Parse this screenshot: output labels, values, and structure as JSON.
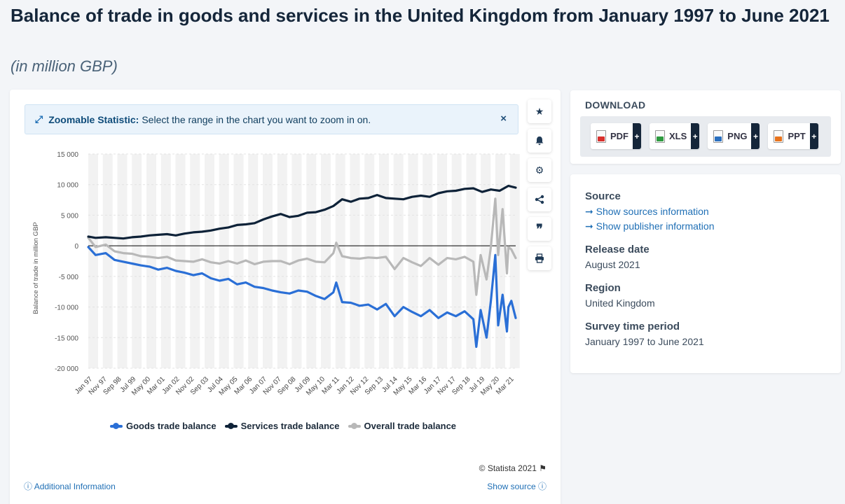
{
  "header": {
    "title": "Balance of trade in goods and services in the United Kingdom from January 1997 to June 2021",
    "subtitle": "(in million GBP)"
  },
  "zoom_banner": {
    "label": "Zoomable Statistic:",
    "text": "Select the range in the chart you want to zoom in on.",
    "close": "×"
  },
  "toolbar": {
    "icons": [
      "star-icon",
      "bell-icon",
      "gear-icon",
      "share-icon",
      "quote-icon",
      "print-icon"
    ]
  },
  "footer": {
    "copyright": "© Statista 2021",
    "additional_info": "Additional Information",
    "show_source": "Show source"
  },
  "download": {
    "heading": "DOWNLOAD",
    "buttons": [
      {
        "label": "PDF",
        "color": "#d9302c"
      },
      {
        "label": "XLS",
        "color": "#2e9b3f"
      },
      {
        "label": "PNG",
        "color": "#2a6fbf"
      },
      {
        "label": "PPT",
        "color": "#e8731c"
      }
    ],
    "plus": "+"
  },
  "info": {
    "source_heading": "Source",
    "source_link1": "Show sources information",
    "source_link2": "Show publisher information",
    "release_heading": "Release date",
    "release_value": "August 2021",
    "region_heading": "Region",
    "region_value": "United Kingdom",
    "period_heading": "Survey time period",
    "period_value": "January 1997 to June 2021"
  },
  "chart_data": {
    "type": "line",
    "ylabel": "Balance of trade in million GBP",
    "xlabel": "",
    "ylim": [
      -20000,
      15000
    ],
    "yticks": [
      15000,
      10000,
      5000,
      0,
      -5000,
      -10000,
      -15000,
      -20000
    ],
    "ytick_labels": [
      "15 000",
      "10 000",
      "5 000",
      "0",
      "-5 000",
      "-10 000",
      "-15 000",
      "-20 000"
    ],
    "x_start": "1997-01",
    "x_end": "2021-06",
    "xtick_labels": [
      "Jan 97",
      "Nov 97",
      "Sep 98",
      "Jul 99",
      "May 00",
      "Mar 01",
      "Jan 02",
      "Nov 02",
      "Sep 03",
      "Jul 04",
      "May 05",
      "Mar 06",
      "Jan 07",
      "Nov 07",
      "Sep 08",
      "Jul 09",
      "May 10",
      "Mar 11",
      "Jan 12",
      "Nov 12",
      "Sep 13",
      "Jul 14",
      "May 15",
      "Mar 16",
      "Jan 17",
      "Nov 17",
      "Sep 18",
      "Jul 19",
      "May 20",
      "Mar 21"
    ],
    "legend_position": "bottom",
    "grid": true,
    "series": [
      {
        "name": "Goods trade balance",
        "color": "#2a6fd6",
        "x": [
          "1997-01",
          "1997-06",
          "1998-01",
          "1998-07",
          "1999-01",
          "1999-07",
          "2000-01",
          "2000-07",
          "2001-01",
          "2001-07",
          "2002-01",
          "2002-07",
          "2003-01",
          "2003-07",
          "2004-01",
          "2004-07",
          "2005-01",
          "2005-07",
          "2006-01",
          "2006-07",
          "2007-01",
          "2007-07",
          "2008-01",
          "2008-07",
          "2009-01",
          "2009-07",
          "2010-01",
          "2010-07",
          "2011-01",
          "2011-03",
          "2011-07",
          "2012-01",
          "2012-07",
          "2013-01",
          "2013-07",
          "2014-01",
          "2014-07",
          "2015-01",
          "2015-07",
          "2016-01",
          "2016-07",
          "2017-01",
          "2017-07",
          "2018-01",
          "2018-07",
          "2019-01",
          "2019-03",
          "2019-06",
          "2019-10",
          "2020-01",
          "2020-04",
          "2020-06",
          "2020-09",
          "2020-12",
          "2021-01",
          "2021-03",
          "2021-06"
        ],
        "values": [
          -200,
          -1500,
          -1200,
          -2300,
          -2600,
          -2900,
          -3200,
          -3400,
          -3900,
          -3600,
          -4100,
          -4400,
          -4800,
          -4500,
          -5300,
          -5700,
          -5400,
          -6300,
          -6000,
          -6700,
          -6900,
          -7300,
          -7600,
          -7800,
          -7300,
          -7500,
          -8200,
          -8700,
          -7600,
          -6000,
          -9200,
          -9300,
          -9800,
          -9600,
          -10400,
          -9500,
          -11500,
          -10000,
          -10800,
          -11500,
          -10500,
          -11800,
          -10900,
          -11500,
          -10700,
          -12000,
          -16500,
          -10500,
          -15000,
          -9000,
          -1500,
          -13000,
          -8000,
          -14000,
          -10000,
          -9000,
          -11800
        ]
      },
      {
        "name": "Services trade balance",
        "color": "#0e2238",
        "x": [
          "1997-01",
          "1997-06",
          "1998-01",
          "1998-07",
          "1999-01",
          "1999-07",
          "2000-01",
          "2000-07",
          "2001-01",
          "2001-07",
          "2002-01",
          "2002-07",
          "2003-01",
          "2003-07",
          "2004-01",
          "2004-07",
          "2005-01",
          "2005-07",
          "2006-01",
          "2006-07",
          "2007-01",
          "2007-07",
          "2008-01",
          "2008-07",
          "2009-01",
          "2009-07",
          "2010-01",
          "2010-07",
          "2011-01",
          "2011-07",
          "2012-01",
          "2012-07",
          "2013-01",
          "2013-07",
          "2014-01",
          "2014-07",
          "2015-01",
          "2015-07",
          "2016-01",
          "2016-07",
          "2017-01",
          "2017-07",
          "2018-01",
          "2018-07",
          "2019-01",
          "2019-07",
          "2020-01",
          "2020-07",
          "2021-01",
          "2021-06"
        ],
        "values": [
          1500,
          1300,
          1400,
          1300,
          1200,
          1400,
          1500,
          1700,
          1800,
          1900,
          1700,
          2000,
          2200,
          2300,
          2500,
          2800,
          3000,
          3400,
          3500,
          3700,
          4300,
          4800,
          5200,
          4700,
          4900,
          5400,
          5500,
          5900,
          6500,
          7600,
          7200,
          7700,
          7800,
          8300,
          7800,
          7700,
          7600,
          8000,
          8200,
          8000,
          8600,
          8900,
          9000,
          9300,
          9400,
          8800,
          9200,
          9000,
          9800,
          9500
        ]
      },
      {
        "name": "Overall trade balance",
        "color": "#b8b8b8",
        "x": [
          "1997-01",
          "1997-06",
          "1998-01",
          "1998-07",
          "1999-01",
          "1999-07",
          "2000-01",
          "2000-07",
          "2001-01",
          "2001-07",
          "2002-01",
          "2002-07",
          "2003-01",
          "2003-07",
          "2004-01",
          "2004-07",
          "2005-01",
          "2005-07",
          "2006-01",
          "2006-07",
          "2007-01",
          "2007-07",
          "2008-01",
          "2008-07",
          "2009-01",
          "2009-07",
          "2010-01",
          "2010-07",
          "2011-01",
          "2011-03",
          "2011-07",
          "2012-01",
          "2012-07",
          "2013-01",
          "2013-07",
          "2014-01",
          "2014-07",
          "2015-01",
          "2015-07",
          "2016-01",
          "2016-07",
          "2017-01",
          "2017-07",
          "2018-01",
          "2018-07",
          "2019-01",
          "2019-03",
          "2019-06",
          "2019-10",
          "2020-01",
          "2020-04",
          "2020-06",
          "2020-09",
          "2020-12",
          "2021-01",
          "2021-03",
          "2021-06"
        ],
        "values": [
          1300,
          -200,
          200,
          -900,
          -1200,
          -1300,
          -1700,
          -1800,
          -2000,
          -1800,
          -2400,
          -2500,
          -2600,
          -2200,
          -2700,
          -2900,
          -2500,
          -2900,
          -2400,
          -3000,
          -2600,
          -2500,
          -2500,
          -3000,
          -2400,
          -2100,
          -2600,
          -2700,
          -1200,
          500,
          -1700,
          -2000,
          -2100,
          -1900,
          -2000,
          -1800,
          -3800,
          -2000,
          -2700,
          -3300,
          -2000,
          -3100,
          -2000,
          -2200,
          -1800,
          -2600,
          -8000,
          -1500,
          -5500,
          -200,
          7700,
          -1500,
          6000,
          -4500,
          -200,
          -600,
          -2000
        ]
      }
    ]
  }
}
